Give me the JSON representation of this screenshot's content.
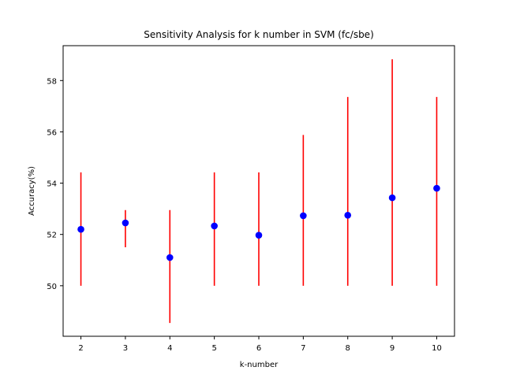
{
  "chart_data": {
    "type": "scatter",
    "title": "Sensitivity Analysis for k number in SVM (fc/sbe)",
    "xlabel": "k-number",
    "ylabel": "Accuracy(%)",
    "x": [
      2,
      3,
      4,
      5,
      6,
      7,
      8,
      9,
      10
    ],
    "series": [
      {
        "values": [
          52.2,
          52.45,
          51.1,
          52.33,
          51.97,
          52.73,
          52.75,
          53.43,
          53.8
        ],
        "err_low": [
          50.0,
          51.5,
          48.55,
          50.0,
          50.0,
          50.0,
          50.0,
          50.0,
          50.0
        ],
        "err_high": [
          54.42,
          52.95,
          52.95,
          54.42,
          54.42,
          55.88,
          57.36,
          58.83,
          57.36
        ]
      }
    ],
    "xlim": [
      1.6,
      10.4
    ],
    "ylim": [
      48.03,
      59.36
    ],
    "xticks": [
      2,
      3,
      4,
      5,
      6,
      7,
      8,
      9,
      10
    ],
    "yticks": [
      50,
      52,
      54,
      56,
      58
    ],
    "marker_color": "#0000ff",
    "errorbar_color": "#ff0000",
    "grid": false,
    "legend": false
  }
}
